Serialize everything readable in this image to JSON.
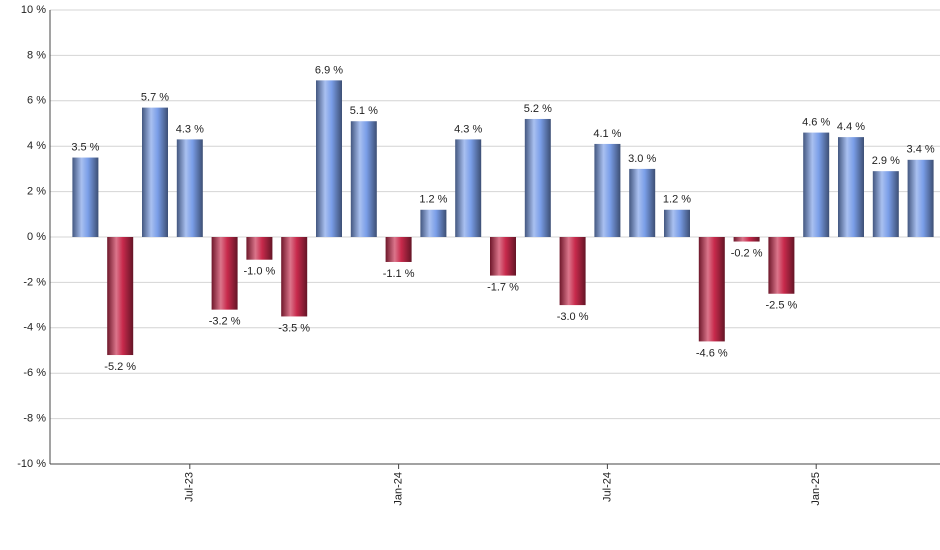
{
  "chart_data": {
    "type": "bar",
    "categories": [
      null,
      null,
      null,
      "Jul-23",
      null,
      null,
      null,
      null,
      null,
      "Jan-24",
      null,
      null,
      null,
      null,
      null,
      "Jul-24",
      null,
      null,
      null,
      null,
      null,
      "Jan-25",
      null,
      null,
      null
    ],
    "values": [
      3.5,
      -5.2,
      5.7,
      4.3,
      -3.2,
      -1.0,
      -3.5,
      6.9,
      5.1,
      -1.1,
      1.2,
      4.3,
      -1.7,
      5.2,
      -3.0,
      4.1,
      3.0,
      1.2,
      -4.6,
      -0.2,
      -2.5,
      4.6,
      4.4,
      2.9,
      3.4
    ],
    "value_labels": [
      "3.5 %",
      "-5.2 %",
      "5.7 %",
      "4.3 %",
      "-3.2 %",
      "-1.0 %",
      "-3.5 %",
      "6.9 %",
      "5.1 %",
      "-1.1 %",
      "1.2 %",
      "4.3 %",
      "-1.7 %",
      "5.2 %",
      "-3.0 %",
      "4.1 %",
      "3.0 %",
      "1.2 %",
      "-4.6 %",
      "-0.2 %",
      "-2.5 %",
      "4.6 %",
      "4.4 %",
      "2.9 %",
      "3.4 %"
    ],
    "positive_color": "#7a9ee8",
    "negative_color": "#c82a4c",
    "ylim": [
      -10,
      10
    ],
    "yticks": [
      {
        "value": -10,
        "label": "-10 %"
      },
      {
        "value": -8,
        "label": "-8 %"
      },
      {
        "value": -6,
        "label": "-6 %"
      },
      {
        "value": -4,
        "label": "-4 %"
      },
      {
        "value": -2,
        "label": "-2 %"
      },
      {
        "value": 0,
        "label": "0 %"
      },
      {
        "value": 2,
        "label": "2 %"
      },
      {
        "value": 4,
        "label": "4 %"
      },
      {
        "value": 6,
        "label": "6 %"
      },
      {
        "value": 8,
        "label": "8 %"
      },
      {
        "value": 10,
        "label": "10 %"
      }
    ],
    "grid": true
  }
}
